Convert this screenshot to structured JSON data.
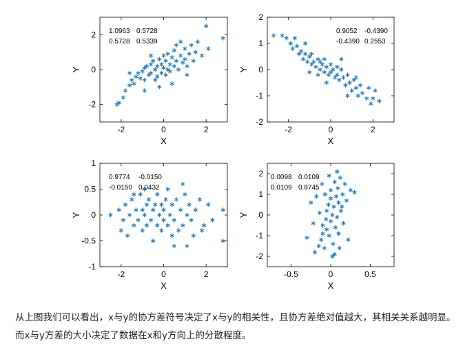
{
  "caption": "从上图我们可以看出，x与y的协方差符号决定了x与y的相关性，且协方差绝对值越大，其相关关系越明显。而x与y方差的大小决定了数据在x和y方向上的分散程度。",
  "colors": {
    "marker": "#1f77b4",
    "axis": "#000000",
    "text": "#000000"
  },
  "chart_data": [
    {
      "type": "scatter",
      "marker": "asterisk",
      "xlabel": "X",
      "ylabel": "Y",
      "xlim": [
        -3,
        3
      ],
      "ylim": [
        -3,
        3
      ],
      "xticks": [
        -2,
        0,
        2
      ],
      "yticks": [
        -2,
        0,
        2
      ],
      "covariance_text": [
        [
          "1.0963",
          "0.5728"
        ],
        [
          "0.5728",
          "0.5339"
        ]
      ],
      "covariance": [
        [
          1.0963,
          0.5728
        ],
        [
          0.5728,
          0.5339
        ]
      ],
      "points": [
        [
          -2.2,
          -2.0
        ],
        [
          -2.1,
          -1.9
        ],
        [
          -1.9,
          -1.6
        ],
        [
          -1.8,
          -1.2
        ],
        [
          -1.6,
          -0.9
        ],
        [
          -1.5,
          -0.6
        ],
        [
          -1.4,
          -0.8
        ],
        [
          -1.3,
          -0.4
        ],
        [
          -1.2,
          -0.2
        ],
        [
          -1.1,
          -0.5
        ],
        [
          -1.0,
          -0.1
        ],
        [
          -0.9,
          0.1
        ],
        [
          -0.9,
          -0.6
        ],
        [
          -0.8,
          0.2
        ],
        [
          -0.7,
          -0.3
        ],
        [
          -0.6,
          0.3
        ],
        [
          -0.6,
          -0.2
        ],
        [
          -0.5,
          0.5
        ],
        [
          -0.4,
          0.0
        ],
        [
          -0.4,
          -0.6
        ],
        [
          -0.3,
          0.2
        ],
        [
          -0.3,
          -0.4
        ],
        [
          -0.2,
          0.6
        ],
        [
          -0.1,
          0.3
        ],
        [
          -0.1,
          -0.2
        ],
        [
          0.0,
          0.8
        ],
        [
          0.0,
          0.1
        ],
        [
          0.1,
          0.5
        ],
        [
          0.1,
          -0.3
        ],
        [
          0.2,
          0.9
        ],
        [
          0.3,
          0.3
        ],
        [
          0.3,
          -0.1
        ],
        [
          0.4,
          0.7
        ],
        [
          0.5,
          0.2
        ],
        [
          0.5,
          1.1
        ],
        [
          0.6,
          0.5
        ],
        [
          0.7,
          0.0
        ],
        [
          0.8,
          0.8
        ],
        [
          0.9,
          0.4
        ],
        [
          1.0,
          1.2
        ],
        [
          1.0,
          0.6
        ],
        [
          1.1,
          0.2
        ],
        [
          1.2,
          0.9
        ],
        [
          1.3,
          1.4
        ],
        [
          1.4,
          0.5
        ],
        [
          1.5,
          1.0
        ],
        [
          1.6,
          1.6
        ],
        [
          1.8,
          0.8
        ],
        [
          2.0,
          2.5
        ],
        [
          2.1,
          1.2
        ],
        [
          -0.2,
          -1.0
        ],
        [
          0.4,
          -0.8
        ],
        [
          -1.6,
          -0.2
        ],
        [
          0.8,
          1.6
        ],
        [
          2.8,
          1.8
        ],
        [
          -0.6,
          0.8
        ],
        [
          0.2,
          0.0
        ],
        [
          1.1,
          -0.3
        ],
        [
          -0.9,
          -1.2
        ],
        [
          0.6,
          1.4
        ]
      ]
    },
    {
      "type": "scatter",
      "marker": "asterisk",
      "xlabel": "X",
      "ylabel": "Y",
      "xlim": [
        -3,
        3
      ],
      "ylim": [
        -2,
        2
      ],
      "xticks": [
        -2,
        0,
        2
      ],
      "yticks": [
        -2,
        -1,
        0,
        1,
        2
      ],
      "covariance_text": [
        [
          "0.9052",
          "-0.4390"
        ],
        [
          "-0.4390",
          "0.2553"
        ]
      ],
      "covariance": [
        [
          0.9052,
          -0.439
        ],
        [
          -0.439,
          0.2553
        ]
      ],
      "points": [
        [
          -2.7,
          1.3
        ],
        [
          -2.3,
          1.3
        ],
        [
          -2.1,
          1.2
        ],
        [
          -1.9,
          1.0
        ],
        [
          -1.8,
          0.8
        ],
        [
          -1.6,
          0.9
        ],
        [
          -1.5,
          0.6
        ],
        [
          -1.4,
          0.7
        ],
        [
          -1.3,
          0.4
        ],
        [
          -1.2,
          0.6
        ],
        [
          -1.1,
          0.3
        ],
        [
          -1.0,
          0.5
        ],
        [
          -0.9,
          0.2
        ],
        [
          -0.9,
          0.6
        ],
        [
          -0.8,
          0.3
        ],
        [
          -0.7,
          0.1
        ],
        [
          -0.6,
          0.4
        ],
        [
          -0.5,
          0.0
        ],
        [
          -0.5,
          0.3
        ],
        [
          -0.4,
          0.2
        ],
        [
          -0.3,
          -0.1
        ],
        [
          -0.3,
          0.4
        ],
        [
          -0.2,
          0.1
        ],
        [
          -0.1,
          -0.2
        ],
        [
          0.0,
          0.2
        ],
        [
          0.0,
          -0.1
        ],
        [
          0.1,
          0.0
        ],
        [
          0.2,
          -0.3
        ],
        [
          0.3,
          0.1
        ],
        [
          0.3,
          -0.2
        ],
        [
          0.4,
          -0.4
        ],
        [
          0.5,
          0.0
        ],
        [
          0.6,
          -0.3
        ],
        [
          0.7,
          -0.6
        ],
        [
          0.8,
          -0.2
        ],
        [
          0.9,
          -0.5
        ],
        [
          1.0,
          -0.8
        ],
        [
          1.1,
          -0.4
        ],
        [
          1.2,
          -0.7
        ],
        [
          1.3,
          -1.0
        ],
        [
          1.4,
          -0.6
        ],
        [
          1.5,
          -0.9
        ],
        [
          1.7,
          -1.1
        ],
        [
          1.8,
          -0.7
        ],
        [
          2.0,
          -1.1
        ],
        [
          2.1,
          -0.8
        ],
        [
          2.3,
          -1.2
        ],
        [
          1.9,
          -1.3
        ],
        [
          -1.0,
          -0.1
        ],
        [
          0.5,
          0.4
        ],
        [
          -1.7,
          1.2
        ],
        [
          -0.2,
          -0.5
        ],
        [
          1.2,
          -0.3
        ],
        [
          -1.2,
          1.0
        ],
        [
          0.8,
          -1.0
        ],
        [
          -0.6,
          -0.2
        ]
      ]
    },
    {
      "type": "scatter",
      "marker": "asterisk",
      "xlabel": "X",
      "ylabel": "Y",
      "xlim": [
        -3,
        3
      ],
      "ylim": [
        -1,
        1
      ],
      "xticks": [
        -2,
        0,
        2
      ],
      "yticks": [
        -1,
        -0.5,
        0,
        0.5,
        1
      ],
      "covariance_text": [
        [
          "0.9774",
          "-0.0150"
        ],
        [
          "-0.0150",
          "0.0432"
        ]
      ],
      "covariance": [
        [
          0.9774,
          -0.015
        ],
        [
          -0.015,
          0.0432
        ]
      ],
      "points": [
        [
          -2.5,
          0.0
        ],
        [
          -2.1,
          0.1
        ],
        [
          -2.0,
          -0.3
        ],
        [
          -1.9,
          -0.1
        ],
        [
          -1.8,
          0.2
        ],
        [
          -1.7,
          -0.4
        ],
        [
          -1.6,
          0.0
        ],
        [
          -1.5,
          0.3
        ],
        [
          -1.4,
          -0.2
        ],
        [
          -1.3,
          0.1
        ],
        [
          -1.2,
          -0.1
        ],
        [
          -1.1,
          0.4
        ],
        [
          -1.0,
          -0.3
        ],
        [
          -1.0,
          0.1
        ],
        [
          -0.9,
          0.0
        ],
        [
          -0.8,
          0.2
        ],
        [
          -0.8,
          -0.2
        ],
        [
          -0.7,
          0.3
        ],
        [
          -0.6,
          -0.1
        ],
        [
          -0.5,
          0.1
        ],
        [
          -0.5,
          -0.5
        ],
        [
          -0.4,
          0.2
        ],
        [
          -0.3,
          -0.2
        ],
        [
          -0.3,
          0.4
        ],
        [
          -0.2,
          0.0
        ],
        [
          -0.1,
          0.2
        ],
        [
          -0.1,
          -0.3
        ],
        [
          0.0,
          0.1
        ],
        [
          0.0,
          -0.1
        ],
        [
          0.1,
          0.3
        ],
        [
          0.2,
          -0.2
        ],
        [
          0.2,
          0.5
        ],
        [
          0.3,
          0.0
        ],
        [
          0.4,
          -0.4
        ],
        [
          0.4,
          0.2
        ],
        [
          0.5,
          -0.1
        ],
        [
          0.6,
          0.3
        ],
        [
          0.7,
          -0.3
        ],
        [
          0.8,
          0.1
        ],
        [
          0.9,
          -0.2
        ],
        [
          1.0,
          0.4
        ],
        [
          1.1,
          -0.6
        ],
        [
          1.1,
          0.0
        ],
        [
          1.2,
          0.2
        ],
        [
          1.3,
          -0.1
        ],
        [
          1.4,
          -0.4
        ],
        [
          1.5,
          0.1
        ],
        [
          1.7,
          0.3
        ],
        [
          1.9,
          -0.2
        ],
        [
          2.1,
          0.2
        ],
        [
          2.3,
          -0.1
        ],
        [
          2.8,
          0.1
        ],
        [
          2.8,
          -0.5
        ],
        [
          -0.9,
          0.5
        ],
        [
          0.5,
          -0.6
        ],
        [
          -1.4,
          0.4
        ],
        [
          1.8,
          -0.3
        ],
        [
          0.9,
          0.6
        ]
      ]
    },
    {
      "type": "scatter",
      "marker": "asterisk",
      "xlabel": "X",
      "ylabel": "Y",
      "xlim": [
        -0.8,
        0.8
      ],
      "ylim": [
        -2.5,
        2.5
      ],
      "xticks": [
        -0.5,
        0,
        0.5
      ],
      "yticks": [
        -2,
        -1,
        0,
        1,
        2
      ],
      "covariance_text": [
        [
          "0.0098",
          "0.0109"
        ],
        [
          "0.0109",
          "0.8745"
        ]
      ],
      "covariance": [
        [
          0.0098,
          0.0109
        ],
        [
          0.0109,
          0.8745
        ]
      ],
      "points": [
        [
          -0.2,
          -1.8
        ],
        [
          -0.15,
          -1.5
        ],
        [
          -0.12,
          -1.2
        ],
        [
          -0.1,
          -0.9
        ],
        [
          -0.1,
          -0.5
        ],
        [
          -0.08,
          -1.6
        ],
        [
          -0.06,
          -0.2
        ],
        [
          -0.05,
          0.2
        ],
        [
          -0.05,
          -0.7
        ],
        [
          -0.03,
          0.5
        ],
        [
          -0.02,
          -1.0
        ],
        [
          0.0,
          0.8
        ],
        [
          0.0,
          -0.3
        ],
        [
          0.0,
          1.2
        ],
        [
          0.02,
          0.0
        ],
        [
          0.03,
          -1.4
        ],
        [
          0.04,
          0.4
        ],
        [
          0.05,
          1.6
        ],
        [
          0.06,
          -0.6
        ],
        [
          0.07,
          0.9
        ],
        [
          0.08,
          -0.1
        ],
        [
          0.09,
          1.3
        ],
        [
          0.1,
          0.6
        ],
        [
          0.1,
          -0.9
        ],
        [
          0.12,
          1.8
        ],
        [
          0.13,
          0.2
        ],
        [
          0.15,
          1.0
        ],
        [
          0.16,
          -0.4
        ],
        [
          0.18,
          1.5
        ],
        [
          0.2,
          0.7
        ],
        [
          0.22,
          -1.2
        ],
        [
          0.25,
          1.2
        ],
        [
          0.3,
          1.1
        ],
        [
          -0.25,
          0.6
        ],
        [
          -0.22,
          -0.4
        ],
        [
          -0.18,
          0.9
        ],
        [
          -0.14,
          0.1
        ],
        [
          -0.3,
          -1.1
        ],
        [
          -0.11,
          1.5
        ],
        [
          0.05,
          -1.9
        ],
        [
          0.08,
          2.1
        ],
        [
          -0.02,
          1.9
        ],
        [
          -0.07,
          1.0
        ],
        [
          0.14,
          0.4
        ],
        [
          0.02,
          -2.0
        ],
        [
          0.11,
          -1.6
        ]
      ]
    }
  ]
}
